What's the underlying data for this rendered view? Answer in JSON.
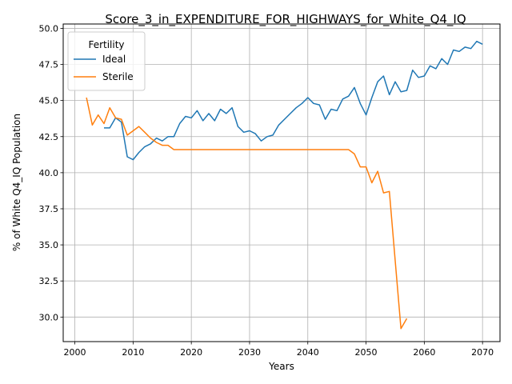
{
  "chart_data": {
    "type": "line",
    "title": "Score_3_in_EXPENDITURE_FOR_HIGHWAYS_for_White_Q4_IQ",
    "xlabel": "Years",
    "ylabel": "% of White Q4_IQ Population",
    "xlim": [
      1998,
      2073
    ],
    "ylim": [
      28.3,
      50.3
    ],
    "xticks": [
      2000,
      2010,
      2020,
      2030,
      2040,
      2050,
      2060,
      2070
    ],
    "yticks": [
      30.0,
      32.5,
      35.0,
      37.5,
      40.0,
      42.5,
      45.0,
      47.5,
      50.0
    ],
    "xtick_labels": [
      "2000",
      "2010",
      "2020",
      "2030",
      "2040",
      "2050",
      "2060",
      "2070"
    ],
    "ytick_labels": [
      "30.0",
      "32.5",
      "35.0",
      "37.5",
      "40.0",
      "42.5",
      "45.0",
      "47.5",
      "50.0"
    ],
    "grid": true,
    "legend": {
      "title": "Fertility",
      "placement": "top-left"
    },
    "series": [
      {
        "name": "Ideal",
        "color": "#1f77b4",
        "x": [
          2005,
          2006,
          2007,
          2008,
          2009,
          2010,
          2011,
          2012,
          2013,
          2014,
          2015,
          2016,
          2017,
          2018,
          2019,
          2020,
          2021,
          2022,
          2023,
          2024,
          2025,
          2026,
          2027,
          2028,
          2029,
          2030,
          2031,
          2032,
          2033,
          2034,
          2035,
          2036,
          2037,
          2038,
          2039,
          2040,
          2041,
          2042,
          2043,
          2044,
          2045,
          2046,
          2047,
          2048,
          2049,
          2050,
          2051,
          2052,
          2053,
          2054,
          2055,
          2056,
          2057,
          2058,
          2059,
          2060,
          2061,
          2062,
          2063,
          2064,
          2065,
          2066,
          2067,
          2068,
          2069,
          2070
        ],
        "y": [
          43.1,
          43.1,
          43.8,
          43.5,
          41.1,
          40.9,
          41.4,
          41.8,
          42.0,
          42.4,
          42.2,
          42.5,
          42.5,
          43.4,
          43.9,
          43.8,
          44.3,
          43.6,
          44.1,
          43.6,
          44.4,
          44.1,
          44.5,
          43.2,
          42.8,
          42.9,
          42.7,
          42.2,
          42.5,
          42.6,
          43.3,
          43.7,
          44.1,
          44.5,
          44.8,
          45.2,
          44.8,
          44.7,
          43.7,
          44.4,
          44.3,
          45.1,
          45.3,
          45.9,
          44.8,
          44.0,
          45.2,
          46.3,
          46.7,
          45.4,
          46.3,
          45.6,
          45.7,
          47.1,
          46.6,
          46.7,
          47.4,
          47.2,
          47.9,
          47.5,
          48.5,
          48.4,
          48.7,
          48.6,
          49.1,
          48.9
        ]
      },
      {
        "name": "Sterile",
        "color": "#ff7f0e",
        "x": [
          2002,
          2003,
          2004,
          2005,
          2006,
          2007,
          2008,
          2009,
          2010,
          2011,
          2012,
          2013,
          2014,
          2015,
          2016,
          2017,
          2018,
          2019,
          2020,
          2021,
          2022,
          2023,
          2024,
          2025,
          2026,
          2027,
          2028,
          2029,
          2030,
          2031,
          2032,
          2033,
          2034,
          2035,
          2036,
          2037,
          2038,
          2039,
          2040,
          2041,
          2042,
          2043,
          2044,
          2045,
          2046,
          2047,
          2048,
          2049,
          2050,
          2051,
          2052,
          2053,
          2054,
          2055,
          2056,
          2057
        ],
        "y": [
          45.2,
          43.3,
          44.0,
          43.4,
          44.5,
          43.8,
          43.7,
          42.6,
          42.9,
          43.2,
          42.8,
          42.4,
          42.1,
          41.9,
          41.9,
          41.6,
          41.6,
          41.6,
          41.6,
          41.6,
          41.6,
          41.6,
          41.6,
          41.6,
          41.6,
          41.6,
          41.6,
          41.6,
          41.6,
          41.6,
          41.6,
          41.6,
          41.6,
          41.6,
          41.6,
          41.6,
          41.6,
          41.6,
          41.6,
          41.6,
          41.6,
          41.6,
          41.6,
          41.6,
          41.6,
          41.6,
          41.3,
          40.4,
          40.4,
          39.3,
          40.1,
          38.6,
          38.7,
          33.9,
          29.2,
          29.9
        ]
      }
    ]
  }
}
